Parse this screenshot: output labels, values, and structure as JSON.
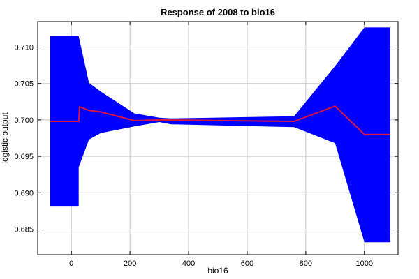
{
  "chart_data": {
    "type": "area",
    "title": "Response of 2008 to bio16",
    "xlabel": "bio16",
    "ylabel": "logistic output",
    "xlim": [
      -115,
      1115
    ],
    "ylim": [
      0.6815,
      0.7135
    ],
    "grid": true,
    "xticks": [
      0,
      200,
      400,
      600,
      800,
      1000
    ],
    "yticks": [
      0.685,
      0.69,
      0.695,
      0.7,
      0.705,
      0.71
    ],
    "ytick_labels": [
      "0.685",
      "0.690",
      "0.695",
      "0.700",
      "0.705",
      "0.710"
    ],
    "colors": {
      "band": "#0000ff",
      "line": "#dc143c"
    },
    "series": [
      {
        "role": "band_upper",
        "x": [
          -72,
          25,
          60,
          100,
          215,
          300,
          340,
          760,
          900,
          1000,
          1088
        ],
        "y": [
          0.7115,
          0.7115,
          0.7051,
          0.7039,
          0.7009,
          0.7003,
          0.7002,
          0.7005,
          0.7074,
          0.7127,
          0.7127
        ]
      },
      {
        "role": "band_lower",
        "x": [
          -72,
          25,
          25,
          60,
          100,
          215,
          300,
          340,
          760,
          900,
          1000,
          1088
        ],
        "y": [
          0.6881,
          0.6881,
          0.6935,
          0.6973,
          0.6982,
          0.6991,
          0.6997,
          0.6994,
          0.699,
          0.6968,
          0.6832,
          0.6832
        ]
      },
      {
        "role": "mean",
        "x": [
          -72,
          25,
          28,
          60,
          100,
          215,
          300,
          760,
          900,
          1000,
          1088
        ],
        "y": [
          0.6998,
          0.6998,
          0.7018,
          0.7013,
          0.7011,
          0.6999,
          0.7,
          0.6998,
          0.7019,
          0.698,
          0.698
        ]
      }
    ]
  }
}
